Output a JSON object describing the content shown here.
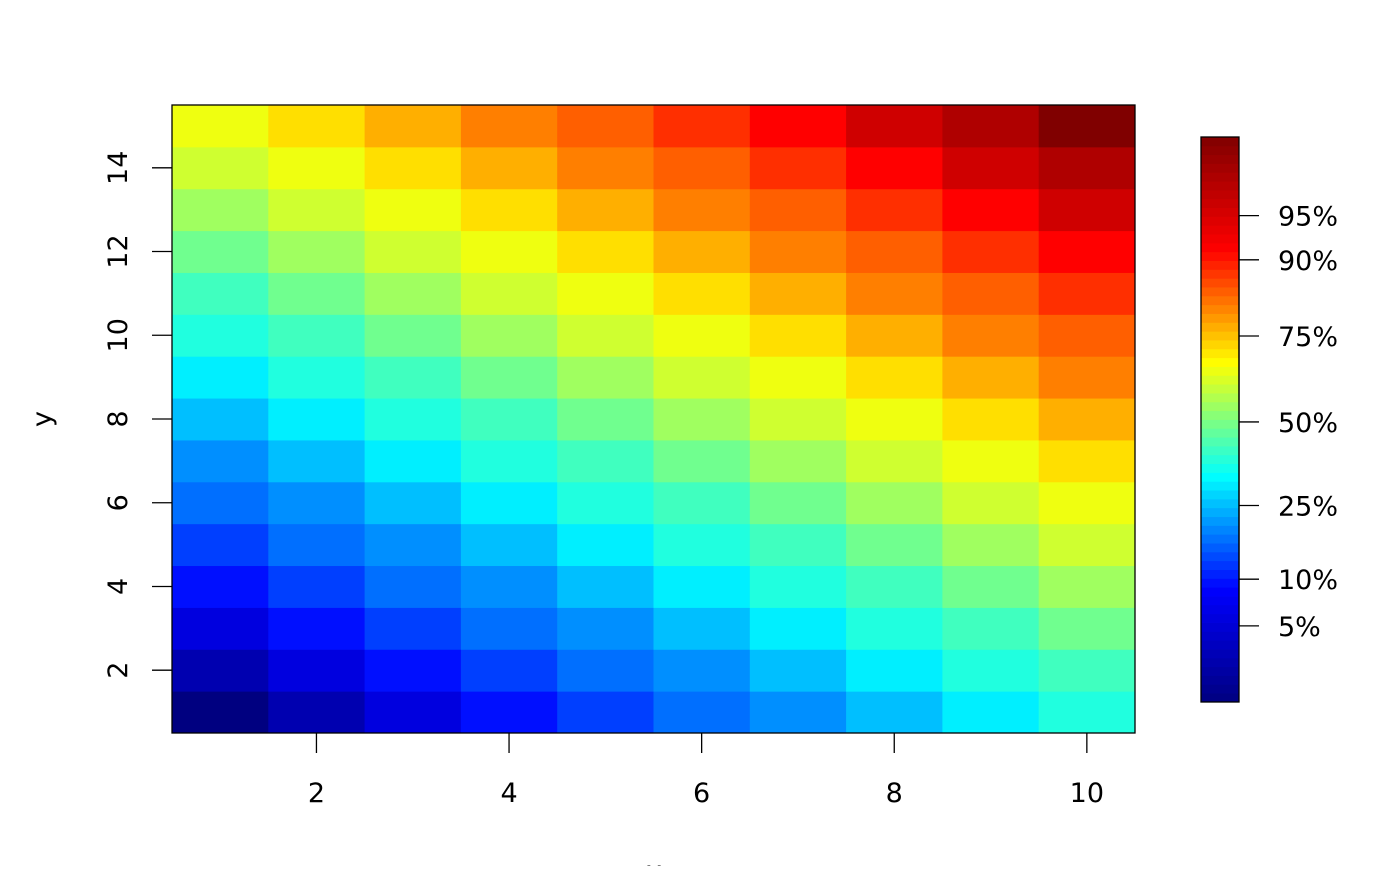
{
  "chart_data": {
    "type": "heatmap",
    "title": "",
    "xlabel": "x",
    "ylabel": "y",
    "x": [
      1,
      2,
      3,
      4,
      5,
      6,
      7,
      8,
      9,
      10
    ],
    "y": [
      1,
      2,
      3,
      4,
      5,
      6,
      7,
      8,
      9,
      10,
      11,
      12,
      13,
      14,
      15
    ],
    "xlim": [
      0.5,
      10.5
    ],
    "ylim": [
      0.5,
      15.5
    ],
    "x_ticks": [
      2,
      4,
      6,
      8,
      10
    ],
    "y_ticks": [
      2,
      4,
      6,
      8,
      10,
      12,
      14
    ],
    "z_rule": "z = x + y",
    "z_range": [
      2,
      25
    ],
    "cell_colors_by_z": {
      "2": "#000080",
      "3": "#0000B0",
      "4": "#0000DF",
      "5": "#000FFF",
      "6": "#003FFF",
      "7": "#006FFF",
      "8": "#008FFF",
      "9": "#00BFFF",
      "10": "#00EFFF",
      "11": "#20FFDF",
      "12": "#40FFBF",
      "13": "#70FF8F",
      "14": "#A0FF60",
      "15": "#CFFF30",
      "16": "#EFFF10",
      "17": "#FFDF00",
      "18": "#FFAF00",
      "19": "#FF7F00",
      "20": "#FF5F00",
      "21": "#FF2F00",
      "22": "#FF0000",
      "23": "#CF0000",
      "24": "#AF0000",
      "25": "#800000"
    },
    "legend": {
      "placement": "right",
      "palette": [
        "#000080",
        "#0000FF",
        "#00FFFF",
        "#FFFF00",
        "#FF0000",
        "#800000"
      ],
      "ticks": [
        {
          "label": "5%",
          "value": 5.1
        },
        {
          "label": "10%",
          "value": 7.0
        },
        {
          "label": "25%",
          "value": 10.0
        },
        {
          "label": "50%",
          "value": 13.4
        },
        {
          "label": "75%",
          "value": 16.9
        },
        {
          "label": "90%",
          "value": 20.0
        },
        {
          "label": "95%",
          "value": 21.8
        }
      ]
    }
  }
}
